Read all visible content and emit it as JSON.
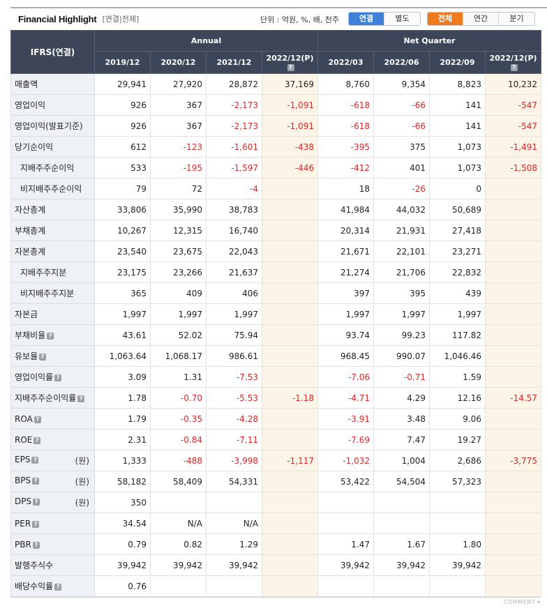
{
  "header": {
    "title": "Financial Highlight",
    "subtitle": "[연결|전체]",
    "unit": "단위 : 억원, %, 배, 천주",
    "basis_buttons": [
      "연결",
      "별도"
    ],
    "period_buttons": [
      "전체",
      "연간",
      "분기"
    ]
  },
  "table": {
    "corner": "IFRS(연결)",
    "group_annual": "Annual",
    "group_quarter": "Net Quarter",
    "columns": [
      "2019/12",
      "2020/12",
      "2021/12",
      "2022/12(P)",
      "2022/03",
      "2022/06",
      "2022/09",
      "2022/12(P)"
    ],
    "rows": [
      {
        "label": "매출액",
        "indent": false,
        "q": false,
        "unit": "",
        "values": [
          "29,941",
          "27,920",
          "28,872",
          "37,169",
          "8,760",
          "9,354",
          "8,823",
          "10,232"
        ]
      },
      {
        "label": "영업이익",
        "indent": false,
        "q": false,
        "unit": "",
        "values": [
          "926",
          "367",
          "-2,173",
          "-1,091",
          "-618",
          "-66",
          "141",
          "-547"
        ]
      },
      {
        "label": "영업이익(발표기준)",
        "indent": false,
        "q": false,
        "unit": "",
        "values": [
          "926",
          "367",
          "-2,173",
          "-1,091",
          "-618",
          "-66",
          "141",
          "-547"
        ]
      },
      {
        "label": "당기순이익",
        "indent": false,
        "q": false,
        "unit": "",
        "values": [
          "612",
          "-123",
          "-1,601",
          "-438",
          "-395",
          "375",
          "1,073",
          "-1,491"
        ]
      },
      {
        "label": "지배주주순이익",
        "indent": true,
        "q": false,
        "unit": "",
        "values": [
          "533",
          "-195",
          "-1,597",
          "-446",
          "-412",
          "401",
          "1,073",
          "-1,508"
        ]
      },
      {
        "label": "비지배주주순이익",
        "indent": true,
        "q": false,
        "unit": "",
        "values": [
          "79",
          "72",
          "-4",
          "",
          "18",
          "-26",
          "0",
          ""
        ]
      },
      {
        "label": "자산총계",
        "indent": false,
        "q": false,
        "unit": "",
        "values": [
          "33,806",
          "35,990",
          "38,783",
          "",
          "41,984",
          "44,032",
          "50,689",
          ""
        ]
      },
      {
        "label": "부채총계",
        "indent": false,
        "q": false,
        "unit": "",
        "values": [
          "10,267",
          "12,315",
          "16,740",
          "",
          "20,314",
          "21,931",
          "27,418",
          ""
        ]
      },
      {
        "label": "자본총계",
        "indent": false,
        "q": false,
        "unit": "",
        "values": [
          "23,540",
          "23,675",
          "22,043",
          "",
          "21,671",
          "22,101",
          "23,271",
          ""
        ]
      },
      {
        "label": "지배주주지분",
        "indent": true,
        "q": false,
        "unit": "",
        "values": [
          "23,175",
          "23,266",
          "21,637",
          "",
          "21,274",
          "21,706",
          "22,832",
          ""
        ]
      },
      {
        "label": "비지배주주지분",
        "indent": true,
        "q": false,
        "unit": "",
        "values": [
          "365",
          "409",
          "406",
          "",
          "397",
          "395",
          "439",
          ""
        ]
      },
      {
        "label": "자본금",
        "indent": false,
        "q": false,
        "unit": "",
        "values": [
          "1,997",
          "1,997",
          "1,997",
          "",
          "1,997",
          "1,997",
          "1,997",
          ""
        ]
      },
      {
        "label": "부채비율",
        "indent": false,
        "q": true,
        "unit": "",
        "values": [
          "43.61",
          "52.02",
          "75.94",
          "",
          "93.74",
          "99.23",
          "117.82",
          ""
        ]
      },
      {
        "label": "유보율",
        "indent": false,
        "q": true,
        "unit": "",
        "values": [
          "1,063.64",
          "1,068.17",
          "986.61",
          "",
          "968.45",
          "990.07",
          "1,046.46",
          ""
        ]
      },
      {
        "label": "영업이익률",
        "indent": false,
        "q": true,
        "unit": "",
        "values": [
          "3.09",
          "1.31",
          "-7.53",
          "",
          "-7.06",
          "-0.71",
          "1.59",
          ""
        ]
      },
      {
        "label": "지배주주순이익률",
        "indent": false,
        "q": true,
        "unit": "",
        "values": [
          "1.78",
          "-0.70",
          "-5.53",
          "-1.18",
          "-4.71",
          "4.29",
          "12.16",
          "-14.57"
        ]
      },
      {
        "label": "ROA",
        "indent": false,
        "q": true,
        "unit": "",
        "values": [
          "1.79",
          "-0.35",
          "-4.28",
          "",
          "-3.91",
          "3.48",
          "9.06",
          ""
        ]
      },
      {
        "label": "ROE",
        "indent": false,
        "q": true,
        "unit": "",
        "values": [
          "2.31",
          "-0.84",
          "-7.11",
          "",
          "-7.69",
          "7.47",
          "19.27",
          ""
        ]
      },
      {
        "label": "EPS",
        "indent": false,
        "q": true,
        "unit": "(원)",
        "values": [
          "1,333",
          "-488",
          "-3,998",
          "-1,117",
          "-1,032",
          "1,004",
          "2,686",
          "-3,775"
        ]
      },
      {
        "label": "BPS",
        "indent": false,
        "q": true,
        "unit": "(원)",
        "values": [
          "58,182",
          "58,409",
          "54,331",
          "",
          "53,422",
          "54,504",
          "57,323",
          ""
        ]
      },
      {
        "label": "DPS",
        "indent": false,
        "q": true,
        "unit": "(원)",
        "values": [
          "350",
          "",
          "",
          "",
          "",
          "",
          "",
          ""
        ]
      },
      {
        "label": "PER",
        "indent": false,
        "q": true,
        "unit": "",
        "values": [
          "34.54",
          "N/A",
          "N/A",
          "",
          "",
          "",
          "",
          ""
        ]
      },
      {
        "label": "PBR",
        "indent": false,
        "q": true,
        "unit": "",
        "values": [
          "0.79",
          "0.82",
          "1.29",
          "",
          "1.47",
          "1.67",
          "1.80",
          ""
        ]
      },
      {
        "label": "발행주식수",
        "indent": false,
        "q": false,
        "unit": "",
        "values": [
          "39,942",
          "39,942",
          "39,942",
          "",
          "39,942",
          "39,942",
          "39,942",
          ""
        ]
      },
      {
        "label": "배당수익률",
        "indent": false,
        "q": true,
        "unit": "",
        "values": [
          "0.76",
          "",
          "",
          "",
          "",
          "",
          "",
          ""
        ]
      }
    ]
  },
  "footer": {
    "comment": "COMMENT"
  },
  "colors": {
    "header_bg": "#3d4658",
    "projection_bg": "#fdf4e8",
    "negative": "#d4292a",
    "active_blue": "#3e82d7",
    "active_orange": "#f07b1f"
  }
}
